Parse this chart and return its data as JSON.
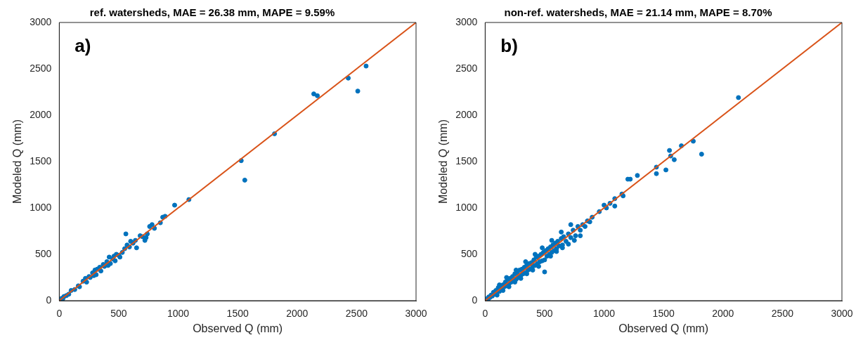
{
  "chart_data": [
    {
      "type": "scatter",
      "title": "ref. watersheds, MAE = 26.38 mm, MAPE = 9.59%",
      "xlabel": "Observed Q (mm)",
      "ylabel": "Modeled Q (mm)",
      "annotations": [
        "a)"
      ],
      "xlim": [
        0,
        3000
      ],
      "ylim": [
        0,
        3000
      ],
      "xticks": [
        0,
        500,
        1000,
        1500,
        2000,
        2500,
        3000
      ],
      "yticks": [
        0,
        500,
        1000,
        1500,
        2000,
        2500,
        3000
      ],
      "grid": false,
      "legend": false,
      "series": [
        {
          "color": "#0072bd",
          "marker": "circle",
          "x": [
            10,
            20,
            30,
            40,
            60,
            80,
            100,
            130,
            160,
            170,
            200,
            220,
            230,
            250,
            260,
            280,
            290,
            300,
            310,
            320,
            340,
            350,
            370,
            380,
            400,
            410,
            420,
            430,
            450,
            460,
            470,
            480,
            500,
            510,
            530,
            550,
            560,
            570,
            590,
            600,
            620,
            640,
            650,
            680,
            700,
            720,
            730,
            740,
            760,
            780,
            800,
            850,
            870,
            890,
            970,
            1090,
            1530,
            1560,
            1810,
            2140,
            2170,
            2430,
            2510,
            2580
          ],
          "values": [
            10,
            25,
            20,
            45,
            55,
            70,
            110,
            120,
            160,
            150,
            210,
            240,
            200,
            260,
            250,
            300,
            270,
            330,
            280,
            340,
            360,
            320,
            390,
            370,
            420,
            380,
            470,
            400,
            450,
            480,
            430,
            500,
            490,
            470,
            520,
            560,
            720,
            600,
            580,
            640,
            620,
            650,
            570,
            700,
            690,
            650,
            680,
            720,
            800,
            820,
            780,
            840,
            900,
            910,
            1030,
            1090,
            1510,
            1300,
            1800,
            2230,
            2210,
            2400,
            2260,
            2530
          ]
        },
        {
          "type": "line",
          "color": "#d95319",
          "marker": "none",
          "x": [
            0,
            3000
          ],
          "values": [
            0,
            3000
          ]
        }
      ]
    },
    {
      "type": "scatter",
      "title": "non-ref. watersheds, MAE = 21.14 mm, MAPE = 8.70%",
      "xlabel": "Observed Q (mm)",
      "ylabel": "Modeled Q (mm)",
      "annotations": [
        "b)"
      ],
      "xlim": [
        0,
        3000
      ],
      "ylim": [
        0,
        3000
      ],
      "xticks": [
        0,
        500,
        1000,
        1500,
        2000,
        2500,
        3000
      ],
      "yticks": [
        0,
        500,
        1000,
        1500,
        2000,
        2500,
        3000
      ],
      "grid": false,
      "legend": false,
      "series": [
        {
          "color": "#0072bd",
          "marker": "circle",
          "x": [
            15,
            25,
            30,
            40,
            50,
            60,
            70,
            80,
            90,
            100,
            110,
            120,
            130,
            140,
            150,
            160,
            170,
            180,
            190,
            200,
            210,
            220,
            230,
            240,
            250,
            260,
            270,
            280,
            290,
            300,
            310,
            320,
            330,
            340,
            350,
            360,
            370,
            380,
            390,
            400,
            410,
            420,
            430,
            440,
            450,
            460,
            470,
            480,
            490,
            500,
            510,
            520,
            530,
            540,
            550,
            560,
            570,
            580,
            590,
            600,
            610,
            620,
            640,
            650,
            660,
            680,
            700,
            720,
            740,
            760,
            780,
            800,
            820,
            840,
            860,
            880,
            900,
            960,
            1000,
            1020,
            1050,
            1090,
            1090,
            1150,
            1160,
            1200,
            1220,
            1280,
            1440,
            1440,
            1520,
            1550,
            1560,
            1590,
            1650,
            1750,
            1820,
            2130,
            100,
            150,
            200,
            250,
            300,
            350,
            400,
            450,
            500,
            550,
            600,
            650,
            700,
            750,
            800,
            120,
            180,
            260,
            340,
            420,
            480,
            560,
            640,
            720
          ],
          "values": [
            20,
            15,
            40,
            35,
            60,
            50,
            90,
            70,
            110,
            90,
            140,
            100,
            160,
            120,
            170,
            150,
            200,
            160,
            230,
            180,
            240,
            200,
            260,
            220,
            290,
            230,
            300,
            250,
            330,
            270,
            340,
            290,
            360,
            300,
            380,
            330,
            400,
            340,
            410,
            370,
            440,
            380,
            470,
            400,
            480,
            420,
            500,
            430,
            520,
            440,
            540,
            480,
            560,
            500,
            580,
            520,
            600,
            540,
            620,
            560,
            640,
            590,
            670,
            600,
            690,
            640,
            720,
            680,
            760,
            700,
            800,
            760,
            820,
            800,
            860,
            850,
            900,
            960,
            1030,
            1000,
            1050,
            1100,
            1020,
            1150,
            1130,
            1310,
            1310,
            1350,
            1440,
            1370,
            1410,
            1620,
            1560,
            1520,
            1670,
            1720,
            1580,
            2190,
            60,
            110,
            150,
            200,
            240,
            290,
            330,
            370,
            310,
            480,
            530,
            570,
            610,
            650,
            700,
            170,
            250,
            330,
            420,
            500,
            570,
            650,
            740,
            820
          ]
        },
        {
          "type": "line",
          "color": "#d95319",
          "marker": "none",
          "x": [
            0,
            3000
          ],
          "values": [
            0,
            3000
          ]
        }
      ]
    }
  ]
}
